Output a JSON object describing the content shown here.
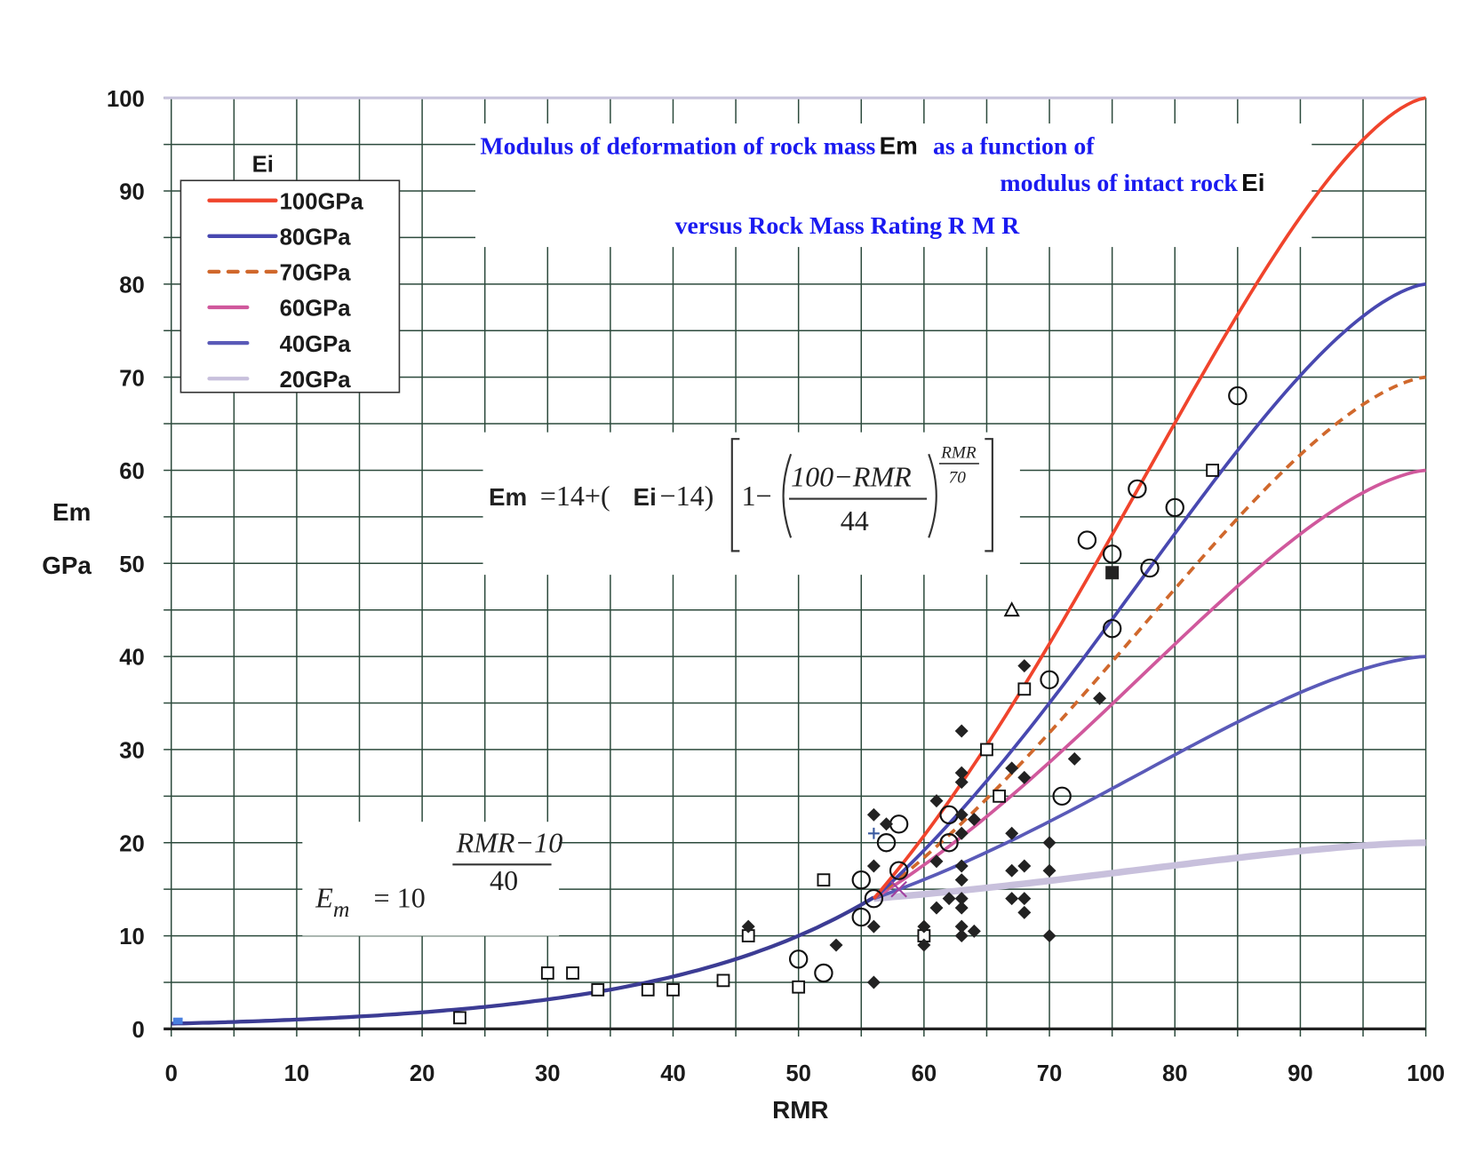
{
  "chart_data": {
    "type": "scatter",
    "xlabel": "RMR",
    "ylabel": [
      "Em",
      "GPa"
    ],
    "xlim": [
      0,
      100
    ],
    "ylim": [
      0,
      100
    ],
    "xticks": [
      "0",
      "10",
      "20",
      "30",
      "40",
      "50",
      "60",
      "70",
      "80",
      "90",
      "100"
    ],
    "yticks": [
      "0",
      "10",
      "20",
      "30",
      "40",
      "50",
      "60",
      "70",
      "80",
      "90",
      "100"
    ],
    "grid": true,
    "title_lines": {
      "line1_a": "Modulus of deformation of rock mass",
      "line1_b": "Em",
      "line1_c": "as a function of",
      "line2_a": "modulus of intact rock",
      "line2_b": "Ei",
      "line3": "versus Rock Mass Rating  R M R"
    },
    "equation1": {
      "lhs": "Em",
      "p1": "=14+(",
      "ei": "Ei",
      "p2": "−14)",
      "p3": "1−",
      "num": "100−RMR",
      "den": "44",
      "exp_num": "RMR",
      "exp_den": "70"
    },
    "equation2": {
      "lhs": "E",
      "sub": "m",
      "mid": "= 10",
      "exp_num": "RMR−10",
      "exp_den": "40"
    },
    "legend": {
      "title": "Ei",
      "position": "top-left",
      "entries": [
        {
          "label": "100GPa",
          "ei": 100,
          "color": "#f0442c",
          "dashed": false
        },
        {
          "label": "80GPa",
          "ei": 80,
          "color": "#4848b0",
          "dashed": false
        },
        {
          "label": "70GPa",
          "ei": 70,
          "color": "#d0682c",
          "dashed": true
        },
        {
          "label": "60GPa",
          "ei": 60,
          "color": "#d0589c",
          "dashed": false
        },
        {
          "label": "40GPa",
          "ei": 40,
          "color": "#5a5ab8",
          "dashed": false
        },
        {
          "label": "20GPa",
          "ei": 20,
          "color": "#c8c0dc",
          "dashed": false
        }
      ]
    },
    "base_curve": {
      "color": "#3c3c94",
      "x_range": [
        0,
        56
      ]
    },
    "ei_curve_x_range": [
      56,
      100
    ],
    "points": {
      "open_square": [
        [
          23,
          1.2
        ],
        [
          30,
          6
        ],
        [
          32,
          6
        ],
        [
          34,
          4.2
        ],
        [
          38,
          4.2
        ],
        [
          40,
          4.2
        ],
        [
          44,
          5.2
        ],
        [
          46,
          10
        ],
        [
          50,
          4.5
        ],
        [
          52,
          16
        ],
        [
          60,
          10
        ],
        [
          65,
          30
        ],
        [
          66,
          25
        ],
        [
          68,
          36.5
        ],
        [
          83,
          60
        ]
      ],
      "open_circle": [
        [
          50,
          7.5
        ],
        [
          52,
          6
        ],
        [
          55,
          16
        ],
        [
          55,
          12
        ],
        [
          56,
          14
        ],
        [
          57,
          20
        ],
        [
          58,
          22
        ],
        [
          58,
          17
        ],
        [
          62,
          23
        ],
        [
          62,
          20
        ],
        [
          70,
          37.5
        ],
        [
          71,
          25
        ],
        [
          73,
          52.5
        ],
        [
          75,
          51
        ],
        [
          75,
          43
        ],
        [
          77,
          58
        ],
        [
          78,
          49.5
        ],
        [
          80,
          56
        ],
        [
          85,
          68
        ]
      ],
      "filled_diamond": [
        [
          46,
          11
        ],
        [
          53,
          9
        ],
        [
          56,
          23
        ],
        [
          56,
          17.5
        ],
        [
          56,
          11
        ],
        [
          56,
          5
        ],
        [
          57,
          22
        ],
        [
          60,
          11
        ],
        [
          60,
          9
        ],
        [
          61,
          24.5
        ],
        [
          61,
          18
        ],
        [
          61,
          13
        ],
        [
          62,
          14
        ],
        [
          63,
          32
        ],
        [
          63,
          27.5
        ],
        [
          63,
          26.5
        ],
        [
          63,
          23
        ],
        [
          63,
          21
        ],
        [
          63,
          17.5
        ],
        [
          63,
          16
        ],
        [
          63,
          14
        ],
        [
          63,
          13
        ],
        [
          63,
          11
        ],
        [
          63,
          10
        ],
        [
          64,
          22.5
        ],
        [
          64,
          10.5
        ],
        [
          67,
          28
        ],
        [
          67,
          21
        ],
        [
          67,
          17
        ],
        [
          67,
          14
        ],
        [
          68,
          39
        ],
        [
          68,
          27
        ],
        [
          68,
          17.5
        ],
        [
          68,
          14
        ],
        [
          68,
          12.5
        ],
        [
          70,
          20
        ],
        [
          70,
          17
        ],
        [
          70,
          10
        ],
        [
          72,
          29
        ],
        [
          74,
          35.5
        ]
      ],
      "filled_square": [
        [
          75,
          49
        ]
      ],
      "open_triangle": [
        [
          67,
          45
        ]
      ],
      "plus": [
        [
          56,
          21
        ]
      ],
      "cross": [
        [
          58,
          15
        ]
      ]
    }
  }
}
